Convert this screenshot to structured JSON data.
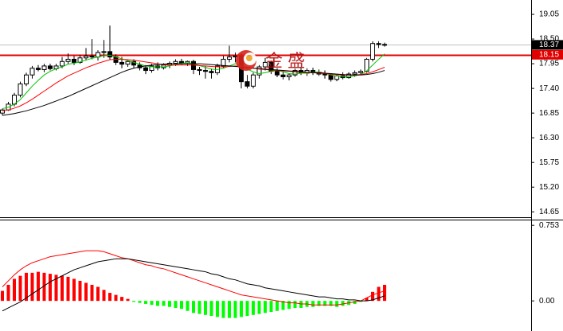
{
  "chart_data": [
    {
      "type": "candlestick",
      "watermark": "金 盛",
      "open": [
        16.85,
        16.92,
        17.05,
        17.25,
        17.5,
        17.7,
        17.85,
        17.82,
        17.9,
        17.84,
        17.9,
        18.0,
        18.05,
        17.98,
        18.08,
        18.12,
        18.1,
        18.2,
        18.22,
        18.1,
        17.98,
        17.94,
        18.0,
        17.92,
        17.86,
        17.8,
        17.9,
        17.86,
        17.92,
        17.96,
        18.0,
        17.97,
        18.0,
        17.82,
        17.8,
        17.78,
        17.75,
        17.9,
        18.05,
        18.1,
        18.12,
        17.55,
        17.45,
        17.7,
        17.88,
        17.98,
        17.78,
        17.7,
        17.66,
        17.7,
        17.8,
        17.74,
        17.8,
        17.76,
        17.72,
        17.7,
        17.6,
        17.68,
        17.64,
        17.72,
        17.75,
        17.78,
        18.05,
        18.4,
        18.38
      ],
      "high": [
        16.95,
        17.1,
        17.3,
        17.55,
        17.75,
        17.9,
        17.92,
        17.95,
        17.95,
        17.95,
        18.1,
        18.18,
        18.12,
        18.15,
        18.3,
        18.5,
        18.25,
        18.48,
        18.8,
        18.16,
        18.1,
        18.05,
        18.05,
        17.98,
        17.92,
        17.95,
        17.98,
        17.96,
        18.0,
        18.05,
        18.06,
        18.02,
        18.04,
        17.88,
        17.9,
        17.84,
        17.95,
        18.12,
        18.35,
        18.2,
        18.18,
        17.7,
        17.75,
        17.92,
        18.08,
        18.02,
        17.85,
        17.78,
        17.74,
        17.84,
        17.86,
        17.85,
        17.86,
        17.82,
        17.8,
        17.74,
        17.72,
        17.76,
        17.76,
        17.8,
        17.82,
        18.08,
        18.45,
        18.45,
        18.42
      ],
      "low": [
        16.8,
        16.9,
        17.0,
        17.2,
        17.45,
        17.62,
        17.78,
        17.76,
        17.8,
        17.8,
        17.85,
        17.95,
        17.92,
        17.95,
        18.02,
        18.05,
        18.02,
        18.08,
        18.05,
        17.92,
        17.85,
        17.88,
        17.86,
        17.8,
        17.72,
        17.75,
        17.8,
        17.82,
        17.85,
        17.9,
        17.93,
        17.9,
        17.72,
        17.7,
        17.62,
        17.62,
        17.7,
        17.85,
        17.98,
        17.98,
        17.4,
        17.4,
        17.4,
        17.62,
        17.8,
        17.72,
        17.65,
        17.6,
        17.58,
        17.66,
        17.7,
        17.68,
        17.7,
        17.68,
        17.62,
        17.55,
        17.56,
        17.6,
        17.62,
        17.66,
        17.7,
        17.75,
        18.0,
        18.3,
        18.33
      ],
      "close": [
        16.92,
        17.05,
        17.25,
        17.5,
        17.7,
        17.85,
        17.82,
        17.9,
        17.84,
        17.9,
        18.0,
        18.05,
        17.98,
        18.08,
        18.12,
        18.1,
        18.2,
        18.22,
        18.1,
        17.98,
        17.94,
        18.0,
        17.92,
        17.86,
        17.8,
        17.9,
        17.86,
        17.92,
        17.96,
        18.0,
        17.97,
        18.0,
        17.82,
        17.8,
        17.78,
        17.75,
        17.9,
        18.05,
        18.1,
        18.12,
        17.55,
        17.45,
        17.7,
        17.88,
        17.98,
        17.78,
        17.7,
        17.66,
        17.7,
        17.8,
        17.74,
        17.8,
        17.76,
        17.72,
        17.7,
        17.6,
        17.68,
        17.64,
        17.72,
        17.75,
        17.78,
        18.05,
        18.4,
        18.38,
        18.37
      ],
      "up_color": "#ffffff",
      "down_color": "#000000",
      "edge_color": "#000000",
      "series": [
        {
          "color": "#00c800",
          "values": [
            16.95,
            16.98,
            17.05,
            17.15,
            17.3,
            17.45,
            17.58,
            17.7,
            17.78,
            17.84,
            17.88,
            17.94,
            17.96,
            17.99,
            18.03,
            18.07,
            18.1,
            18.13,
            18.14,
            18.1,
            18.06,
            18.02,
            17.98,
            17.94,
            17.9,
            17.88,
            17.88,
            17.88,
            17.9,
            17.93,
            17.96,
            17.97,
            17.95,
            17.91,
            17.87,
            17.83,
            17.82,
            17.85,
            17.9,
            17.95,
            17.9,
            17.83,
            17.77,
            17.73,
            17.75,
            17.78,
            17.8,
            17.77,
            17.73,
            17.72,
            17.74,
            17.74,
            17.76,
            17.76,
            17.74,
            17.7,
            17.68,
            17.66,
            17.66,
            17.68,
            17.71,
            17.79,
            17.92,
            18.05,
            18.17
          ]
        },
        {
          "color": "#ff0000",
          "values": [
            16.9,
            16.92,
            16.96,
            17.01,
            17.08,
            17.16,
            17.25,
            17.34,
            17.43,
            17.52,
            17.6,
            17.68,
            17.74,
            17.8,
            17.86,
            17.91,
            17.96,
            18.0,
            18.04,
            18.05,
            18.05,
            18.04,
            18.03,
            18.01,
            17.99,
            17.97,
            17.95,
            17.93,
            17.92,
            17.92,
            17.92,
            17.92,
            17.92,
            17.91,
            17.9,
            17.89,
            17.88,
            17.88,
            17.89,
            17.9,
            17.89,
            17.87,
            17.85,
            17.83,
            17.82,
            17.81,
            17.8,
            17.79,
            17.78,
            17.77,
            17.76,
            17.75,
            17.75,
            17.74,
            17.73,
            17.72,
            17.71,
            17.7,
            17.7,
            17.7,
            17.71,
            17.73,
            17.77,
            17.82,
            17.87
          ]
        },
        {
          "color": "#000000",
          "values": [
            16.8,
            16.82,
            16.84,
            16.87,
            16.9,
            16.94,
            16.98,
            17.02,
            17.07,
            17.12,
            17.17,
            17.22,
            17.28,
            17.34,
            17.4,
            17.46,
            17.52,
            17.58,
            17.64,
            17.7,
            17.76,
            17.81,
            17.85,
            17.88,
            17.9,
            17.92,
            17.93,
            17.94,
            17.95,
            17.95,
            17.95,
            17.95,
            17.95,
            17.95,
            17.94,
            17.93,
            17.92,
            17.91,
            17.9,
            17.89,
            17.88,
            17.86,
            17.85,
            17.84,
            17.83,
            17.82,
            17.81,
            17.8,
            17.79,
            17.78,
            17.77,
            17.76,
            17.75,
            17.75,
            17.74,
            17.73,
            17.72,
            17.71,
            17.7,
            17.7,
            17.7,
            17.71,
            17.73,
            17.76,
            17.8
          ]
        }
      ],
      "price_lines": [
        {
          "value": 18.37,
          "color": "#c0c0c0",
          "tag_color": "#000000"
        },
        {
          "value": 18.15,
          "color": "#e00000",
          "tag_color": "#e00000"
        }
      ],
      "ylim": [
        14.53,
        19.37
      ],
      "yticks": [
        19.05,
        {
          "value": 18.5,
          "label": "18.50"
        },
        17.95,
        {
          "value": 17.4,
          "label": "17.40"
        },
        16.85,
        {
          "value": 16.3,
          "label": "16.30"
        },
        15.75,
        {
          "value": 15.2,
          "label": "15.20"
        },
        14.65
      ]
    },
    {
      "type": "macd",
      "histogram": {
        "up_color": "#ff0000",
        "down_color": "#00ff00",
        "values": [
          0.1,
          0.16,
          0.22,
          0.25,
          0.28,
          0.28,
          0.29,
          0.28,
          0.27,
          0.26,
          0.25,
          0.24,
          0.22,
          0.2,
          0.18,
          0.16,
          0.14,
          0.11,
          0.08,
          0.06,
          0.04,
          0.02,
          -0.01,
          -0.02,
          -0.03,
          -0.04,
          -0.05,
          -0.05,
          -0.06,
          -0.07,
          -0.08,
          -0.1,
          -0.12,
          -0.13,
          -0.14,
          -0.15,
          -0.16,
          -0.17,
          -0.17,
          -0.17,
          -0.16,
          -0.15,
          -0.14,
          -0.13,
          -0.12,
          -0.11,
          -0.1,
          -0.09,
          -0.08,
          -0.07,
          -0.07,
          -0.06,
          -0.06,
          -0.05,
          -0.05,
          -0.05,
          -0.06,
          -0.05,
          -0.04,
          -0.03,
          -0.01,
          0.03,
          0.09,
          0.14,
          0.16
        ]
      },
      "series": [
        {
          "color": "#ff0000",
          "values": [
            0.14,
            0.2,
            0.26,
            0.31,
            0.35,
            0.38,
            0.4,
            0.42,
            0.44,
            0.45,
            0.46,
            0.47,
            0.48,
            0.49,
            0.5,
            0.5,
            0.5,
            0.49,
            0.47,
            0.45,
            0.43,
            0.42,
            0.4,
            0.38,
            0.36,
            0.35,
            0.33,
            0.32,
            0.3,
            0.28,
            0.26,
            0.24,
            0.22,
            0.2,
            0.18,
            0.16,
            0.14,
            0.12,
            0.1,
            0.08,
            0.06,
            0.05,
            0.04,
            0.03,
            0.02,
            0.01,
            0.0,
            -0.01,
            -0.02,
            -0.02,
            -0.03,
            -0.03,
            -0.04,
            -0.04,
            -0.04,
            -0.04,
            -0.04,
            -0.03,
            -0.02,
            -0.01,
            0.0,
            0.03,
            0.06,
            0.08,
            0.1
          ]
        },
        {
          "color": "#000000",
          "values": [
            -0.1,
            -0.07,
            -0.04,
            -0.01,
            0.03,
            0.07,
            0.11,
            0.15,
            0.19,
            0.22,
            0.25,
            0.28,
            0.31,
            0.33,
            0.35,
            0.37,
            0.39,
            0.4,
            0.41,
            0.42,
            0.42,
            0.42,
            0.41,
            0.4,
            0.39,
            0.38,
            0.37,
            0.36,
            0.35,
            0.34,
            0.33,
            0.32,
            0.31,
            0.3,
            0.29,
            0.27,
            0.26,
            0.24,
            0.22,
            0.21,
            0.19,
            0.17,
            0.16,
            0.15,
            0.13,
            0.12,
            0.11,
            0.1,
            0.09,
            0.08,
            0.07,
            0.06,
            0.05,
            0.04,
            0.04,
            0.03,
            0.02,
            0.02,
            0.01,
            0.01,
            0.0,
            0.0,
            0.01,
            0.03,
            0.05
          ]
        }
      ],
      "ylim": [
        -0.3,
        0.81
      ],
      "yticks": [
        0.753,
        {
          "value": 0,
          "label": "0.00"
        }
      ]
    }
  ]
}
